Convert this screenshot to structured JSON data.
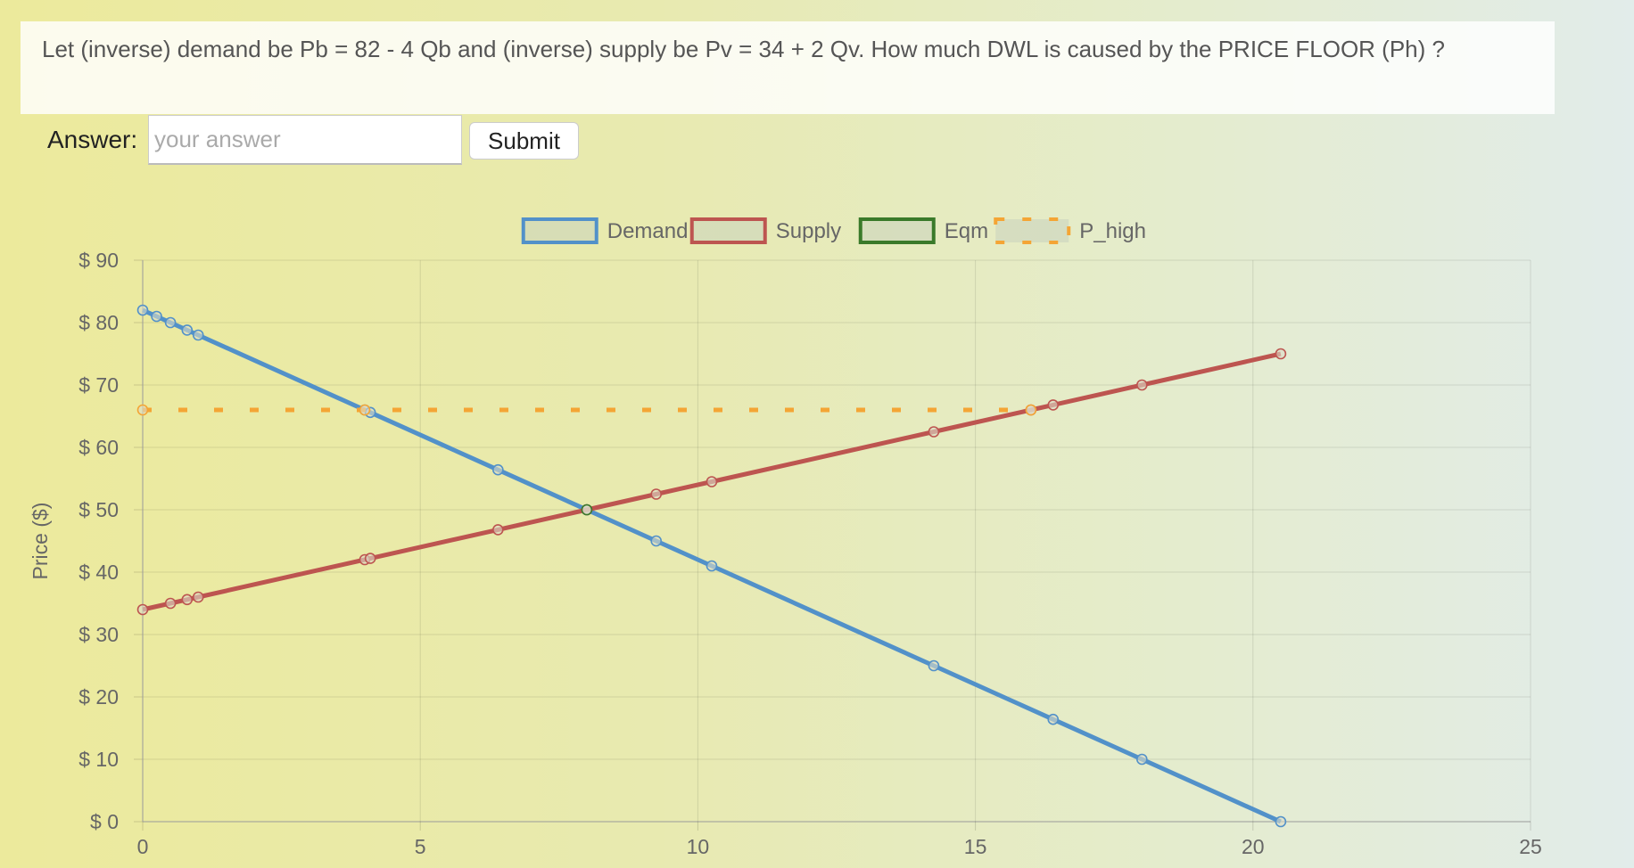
{
  "question": {
    "text": "Let (inverse) demand be Pb = 82 - 4 Qb and (inverse) supply be Pv = 34 + 2 Qv. How much DWL is caused by the PRICE FLOOR (Ph) ?"
  },
  "answer": {
    "label": "Answer:",
    "placeholder": "your answer",
    "value": "",
    "submit_label": "Submit"
  },
  "chart_data": {
    "type": "line",
    "title": "",
    "xlabel": "",
    "ylabel": "Price ($)",
    "xlim": [
      0,
      25
    ],
    "ylim": [
      0,
      90
    ],
    "x_ticks": [
      "0",
      "5",
      "10",
      "15",
      "20",
      "25"
    ],
    "y_ticks": [
      "$ 0",
      "$ 10",
      "$ 20",
      "$ 30",
      "$ 40",
      "$ 50",
      "$ 60",
      "$ 70",
      "$ 80",
      "$ 90"
    ],
    "grid": true,
    "legend_position": "top",
    "series": [
      {
        "name": "Demand",
        "color": "#5291c9",
        "style": "solid",
        "points": [
          [
            0,
            82
          ],
          [
            0.25,
            81
          ],
          [
            0.5,
            80
          ],
          [
            0.8,
            78.8
          ],
          [
            1,
            78
          ],
          [
            4,
            66
          ],
          [
            4.1,
            65.6
          ],
          [
            6.4,
            56.4
          ],
          [
            8,
            50
          ],
          [
            9.25,
            45
          ],
          [
            10.25,
            41
          ],
          [
            14.25,
            25
          ],
          [
            16.4,
            16.4
          ],
          [
            18,
            10
          ],
          [
            20.5,
            0
          ]
        ]
      },
      {
        "name": "Supply",
        "color": "#bd5550",
        "style": "solid",
        "points": [
          [
            0,
            34
          ],
          [
            0.5,
            35
          ],
          [
            0.8,
            35.6
          ],
          [
            1,
            36
          ],
          [
            4,
            42
          ],
          [
            4.1,
            42.2
          ],
          [
            6.4,
            46.8
          ],
          [
            8,
            50
          ],
          [
            9.25,
            52.5
          ],
          [
            10.25,
            54.5
          ],
          [
            14.25,
            62.5
          ],
          [
            16,
            66
          ],
          [
            16.4,
            66.8
          ],
          [
            18,
            70
          ],
          [
            20.5,
            75
          ]
        ]
      },
      {
        "name": "Eqm",
        "color": "#3a7a2a",
        "style": "solid",
        "points": [
          [
            8,
            50
          ]
        ]
      },
      {
        "name": "P_high",
        "color": "#f4a535",
        "style": "dashed",
        "points": [
          [
            0,
            66
          ],
          [
            4,
            66
          ],
          [
            16,
            66
          ]
        ]
      }
    ]
  }
}
